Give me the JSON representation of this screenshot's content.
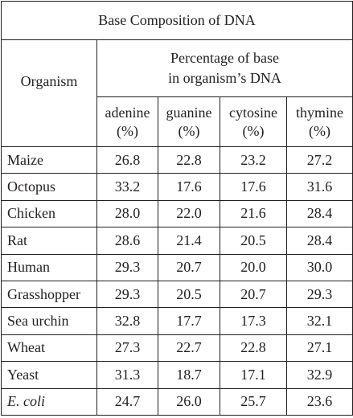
{
  "title": "Base Composition of DNA",
  "header": {
    "organism": "Organism",
    "group": [
      "Percentage of base",
      "in organism’s DNA"
    ],
    "columns": [
      {
        "name": "adenine",
        "unit": "(%)"
      },
      {
        "name": "guanine",
        "unit": "(%)"
      },
      {
        "name": "cytosine",
        "unit": "(%)"
      },
      {
        "name": "thymine",
        "unit": "(%)"
      }
    ]
  },
  "table": {
    "rows": [
      [
        "Maize",
        "26.8",
        "22.8",
        "23.2",
        "27.2"
      ],
      [
        "Octopus",
        "33.2",
        "17.6",
        "17.6",
        "31.6"
      ],
      [
        "Chicken",
        "28.0",
        "22.0",
        "21.6",
        "28.4"
      ],
      [
        "Rat",
        "28.6",
        "21.4",
        "20.5",
        "28.4"
      ],
      [
        "Human",
        "29.3",
        "20.7",
        "20.0",
        "30.0"
      ],
      [
        "Grasshopper",
        "29.3",
        "20.5",
        "20.7",
        "29.3"
      ],
      [
        "Sea urchin",
        "32.8",
        "17.7",
        "17.3",
        "32.1"
      ],
      [
        "Wheat",
        "27.3",
        "22.7",
        "22.8",
        "27.1"
      ],
      [
        "Yeast",
        "31.3",
        "18.7",
        "17.1",
        "32.9"
      ],
      [
        "E. coli",
        "24.7",
        "26.0",
        "25.7",
        "23.6"
      ]
    ]
  }
}
